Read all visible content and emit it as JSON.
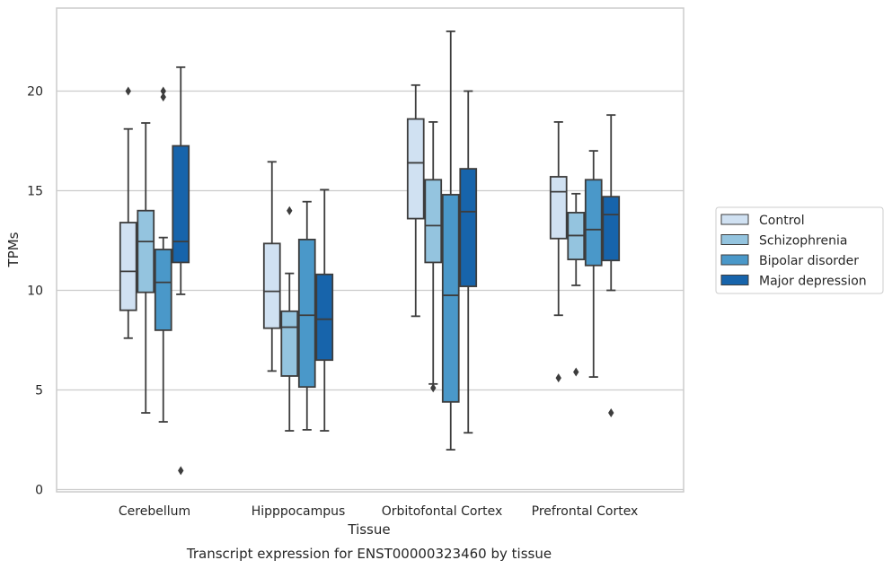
{
  "chart_data": {
    "type": "boxplot",
    "xlabel": "Tissue",
    "ylabel": "TPMs",
    "caption": "Transcript expression for ENST00000323460 by tissue",
    "ylim": [
      0,
      23.5
    ],
    "yticks": [
      0,
      5,
      10,
      15,
      20
    ],
    "grid": "horizontal",
    "legend_position": "right",
    "categories": [
      "Cerebellum",
      "Hipppocampus",
      "Orbitofontal Cortex",
      "Prefrontal Cortex"
    ],
    "series": [
      {
        "name": "Control",
        "color": "#d0e1f2",
        "boxes": [
          {
            "whislo": 7.6,
            "q1": 9.0,
            "med": 10.95,
            "q3": 13.4,
            "whishi": 18.1,
            "fliers": [
              20.0
            ]
          },
          {
            "whislo": 5.95,
            "q1": 8.1,
            "med": 9.95,
            "q3": 12.35,
            "whishi": 16.45,
            "fliers": []
          },
          {
            "whislo": 8.7,
            "q1": 13.6,
            "med": 16.4,
            "q3": 18.6,
            "whishi": 20.3,
            "fliers": []
          },
          {
            "whislo": 8.75,
            "q1": 12.6,
            "med": 14.95,
            "q3": 15.7,
            "whishi": 18.45,
            "fliers": [
              5.6
            ]
          }
        ]
      },
      {
        "name": "Schizophrenia",
        "color": "#94c4df",
        "boxes": [
          {
            "whislo": 3.85,
            "q1": 9.9,
            "med": 12.45,
            "q3": 14.0,
            "whishi": 18.4,
            "fliers": []
          },
          {
            "whislo": 2.95,
            "q1": 5.7,
            "med": 8.15,
            "q3": 8.95,
            "whishi": 10.85,
            "fliers": [
              14.0
            ]
          },
          {
            "whislo": 5.3,
            "q1": 11.4,
            "med": 13.25,
            "q3": 15.55,
            "whishi": 18.45,
            "fliers": [
              5.1
            ]
          },
          {
            "whislo": 10.25,
            "q1": 11.55,
            "med": 12.75,
            "q3": 13.9,
            "whishi": 14.85,
            "fliers": [
              5.9
            ]
          }
        ]
      },
      {
        "name": "Bipolar disorder",
        "color": "#4a98c9",
        "boxes": [
          {
            "whislo": 3.4,
            "q1": 8.0,
            "med": 10.4,
            "q3": 12.05,
            "whishi": 12.65,
            "fliers": [
              20.0,
              19.7
            ]
          },
          {
            "whislo": 3.0,
            "q1": 5.15,
            "med": 8.75,
            "q3": 12.55,
            "whishi": 14.45,
            "fliers": []
          },
          {
            "whislo": 2.0,
            "q1": 4.4,
            "med": 9.75,
            "q3": 14.8,
            "whishi": 23.0,
            "fliers": []
          },
          {
            "whislo": 5.65,
            "q1": 11.25,
            "med": 13.05,
            "q3": 15.55,
            "whishi": 17.0,
            "fliers": []
          }
        ]
      },
      {
        "name": "Major depression",
        "color": "#1764ab",
        "boxes": [
          {
            "whislo": 9.8,
            "q1": 11.4,
            "med": 12.45,
            "q3": 17.25,
            "whishi": 21.2,
            "fliers": [
              0.95
            ]
          },
          {
            "whislo": 2.95,
            "q1": 6.5,
            "med": 8.55,
            "q3": 10.8,
            "whishi": 15.05,
            "fliers": []
          },
          {
            "whislo": 2.85,
            "q1": 10.2,
            "med": 13.95,
            "q3": 16.1,
            "whishi": 20.0,
            "fliers": []
          },
          {
            "whislo": 10.0,
            "q1": 11.5,
            "med": 13.8,
            "q3": 14.7,
            "whishi": 18.8,
            "fliers": [
              3.85
            ]
          }
        ]
      }
    ]
  }
}
